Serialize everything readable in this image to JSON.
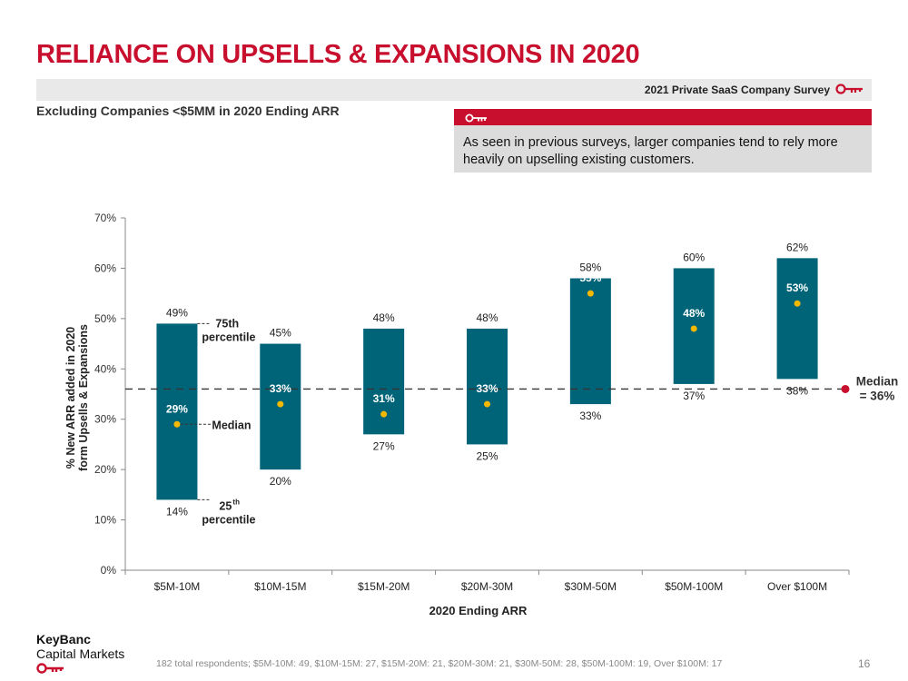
{
  "header": {
    "title": "RELIANCE ON UPSELLS & EXPANSIONS IN 2020",
    "survey_label": "2021 Private SaaS Company Survey",
    "subtitle": "Excluding Companies <$5MM in 2020 Ending ARR"
  },
  "callout": {
    "text": "As seen in previous surveys, larger companies tend to rely more heavily on upselling existing customers."
  },
  "colors": {
    "brand_red": "#c8102e",
    "bar": "#006479",
    "median_dot": "#f5b800"
  },
  "chart_data": {
    "type": "bar",
    "xlabel": "2020 Ending ARR",
    "ylabel_line1": "% New ARR added in 2020",
    "ylabel_line2": "form Upsells & Expansions",
    "ylim": [
      0,
      70
    ],
    "yticks": [
      "0%",
      "10%",
      "20%",
      "30%",
      "40%",
      "50%",
      "60%",
      "70%"
    ],
    "categories": [
      "$5M-10M",
      "$10M-15M",
      "$15M-20M",
      "$20M-30M",
      "$30M-50M",
      "$50M-100M",
      "Over $100M"
    ],
    "p25": [
      14,
      20,
      27,
      25,
      33,
      37,
      38
    ],
    "p75": [
      49,
      45,
      48,
      48,
      58,
      60,
      62
    ],
    "median": [
      29,
      33,
      31,
      33,
      55,
      48,
      53
    ],
    "p25_labels": [
      "14%",
      "20%",
      "27%",
      "25%",
      "33%",
      "37%",
      "38%"
    ],
    "p75_labels": [
      "49%",
      "45%",
      "48%",
      "48%",
      "58%",
      "60%",
      "62%"
    ],
    "median_labels": [
      "29%",
      "33%",
      "31%",
      "33%",
      "55%",
      "48%",
      "53%"
    ],
    "overall_median": 36,
    "overall_median_line1": "Median",
    "overall_median_line2": "= 36%",
    "annotations": {
      "p75_line1": "75th",
      "p75_line2": "percentile",
      "median": "Median",
      "p25_num": "25",
      "p25_sup": "th",
      "p25_line2": "percentile"
    }
  },
  "footer": {
    "logo_line1": "KeyBanc",
    "logo_line2": "Capital Markets",
    "footnote": "182 total respondents; $5M-10M: 49, $10M-15M: 27, $15M-20M: 21, $20M-30M: 21, $30M-50M: 28,  $50M-100M: 19, Over $100M: 17",
    "page_number": "16"
  }
}
